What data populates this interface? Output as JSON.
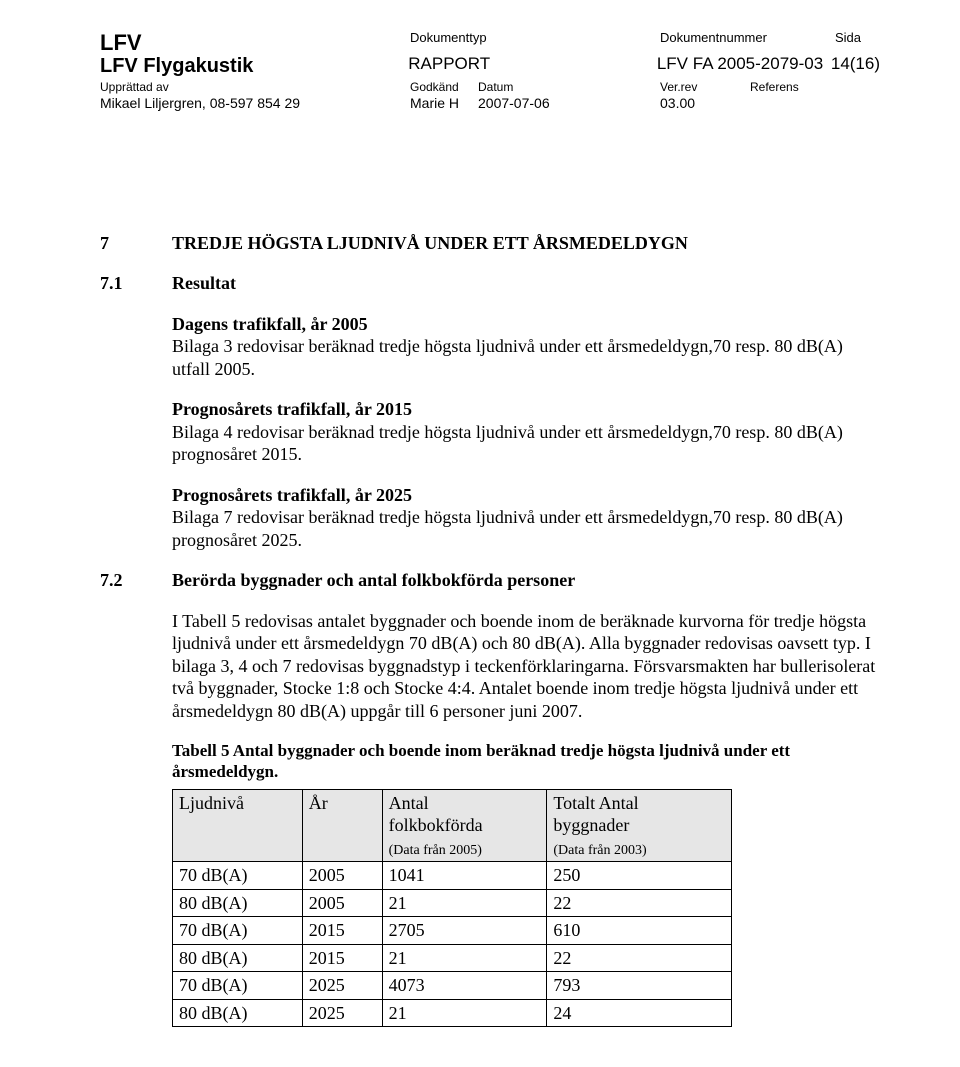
{
  "header": {
    "lfv": "LFV",
    "dept": "LFV Flygakustik",
    "doktyp_label": "Dokumenttyp",
    "doktyp_value": "RAPPORT",
    "doknr_label": "Dokumentnummer",
    "doknr_value": "LFV FA 2005-2079-03",
    "sida_label": "Sida",
    "sida_value": "14(16)",
    "upp_label": "Upprättad av",
    "upp_value": "Mikael Liljergren, 08-597 854 29",
    "god_label": "Godkänd",
    "god_value": "Marie H",
    "dat_label": "Datum",
    "dat_value": "2007-07-06",
    "ver_label": "Ver.rev",
    "ver_value": "03.00",
    "ref_label": "Referens",
    "ref_value": ""
  },
  "sec7": {
    "num": "7",
    "title": "TREDJE HÖGSTA LJUDNIVÅ UNDER ETT ÅRSMEDELDYGN"
  },
  "sec71": {
    "num": "7.1",
    "title": "Resultat",
    "p1_lead": "Dagens trafikfall, år 2005",
    "p1_body": "Bilaga 3 redovisar beräknad tredje högsta ljudnivå under ett årsmedeldygn,70 resp. 80 dB(A) utfall 2005.",
    "p2_lead": "Prognosårets trafikfall, år 2015",
    "p2_body": "Bilaga 4 redovisar beräknad tredje högsta ljudnivå under ett årsmedeldygn,70 resp. 80 dB(A) prognosåret 2015.",
    "p3_lead": "Prognosårets trafikfall, år 2025",
    "p3_body": "Bilaga 7 redovisar beräknad tredje högsta ljudnivå under ett årsmedeldygn,70 resp. 80 dB(A) prognosåret 2025."
  },
  "sec72": {
    "num": "7.2",
    "title": "Berörda byggnader och antal folkbokförda personer",
    "p1": "I Tabell 5 redovisas antalet byggnader och boende inom de beräknade kurvorna för tredje högsta ljudnivå under ett årsmedeldygn 70 dB(A) och 80 dB(A). Alla byggnader redovisas oavsett typ. I bilaga 3, 4 och 7 redovisas byggnadstyp i teckenförklaringarna. Försvarsmakten har bullerisolerat två byggnader, Stocke 1:8 och Stocke 4:4. Antalet boende inom tredje högsta ljudnivå under ett årsmedeldygn 80 dB(A) uppgår till 6 personer juni 2007.",
    "caption": "Tabell 5 Antal byggnader och boende inom beräknad tredje högsta ljudnivå under ett årsmedeldygn."
  },
  "table": {
    "columns": {
      "c1": "Ljudnivå",
      "c2": "År",
      "c3_line1": "Antal",
      "c3_line2": "folkbokförda",
      "c3_sub": "(Data från 2005)",
      "c4_line1": "Totalt Antal",
      "c4_line2": "byggnader",
      "c4_sub": "(Data från 2003)"
    },
    "rows": [
      [
        "70 dB(A)",
        "2005",
        "1041",
        "250"
      ],
      [
        "80 dB(A)",
        "2005",
        "21",
        "22"
      ],
      [
        "70 dB(A)",
        "2015",
        "2705",
        "610"
      ],
      [
        "80 dB(A)",
        "2015",
        "21",
        "22"
      ],
      [
        "70 dB(A)",
        "2025",
        "4073",
        "793"
      ],
      [
        "80 dB(A)",
        "2025",
        "21",
        "24"
      ]
    ],
    "header_bg": "#e6e6e6"
  }
}
